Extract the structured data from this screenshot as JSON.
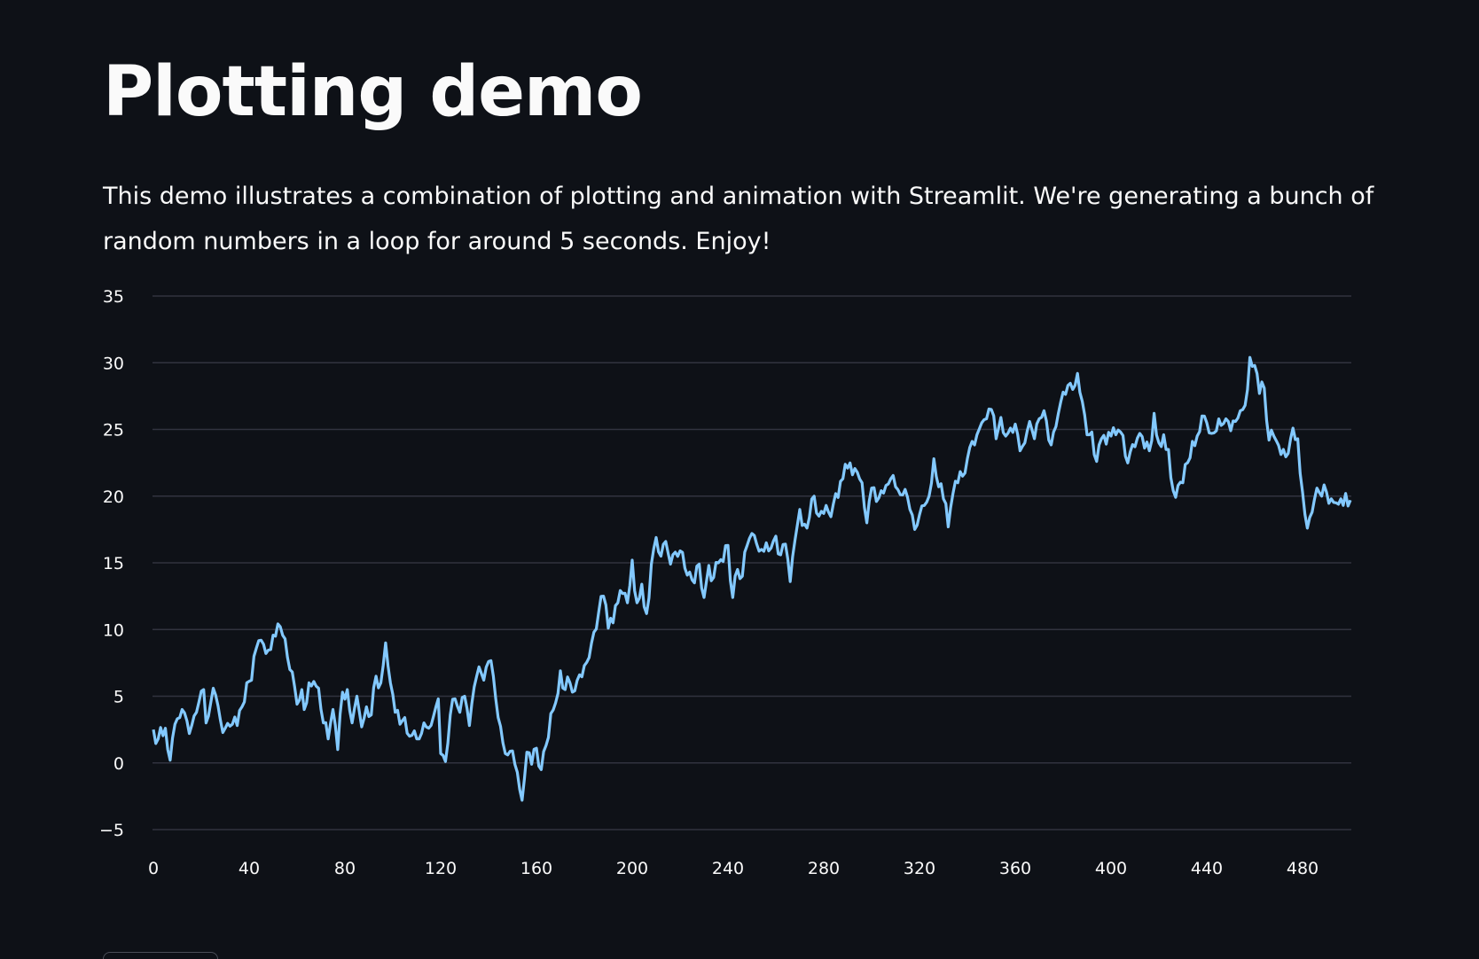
{
  "page": {
    "title": "Plotting demo",
    "description": "This demo illustrates a combination of plotting and animation with Streamlit. We're generating a bunch of random numbers in a loop for around 5 seconds. Enjoy!"
  },
  "colors": {
    "background": "#0e1117",
    "text": "#fafafa",
    "line": "#83c9ff",
    "grid": "#31333f"
  },
  "chart_data": {
    "type": "line",
    "title": "",
    "xlabel": "",
    "ylabel": "",
    "xlim": [
      0,
      500
    ],
    "ylim": [
      -5,
      35
    ],
    "x_ticks": [
      0,
      40,
      80,
      120,
      160,
      200,
      240,
      280,
      320,
      360,
      400,
      440,
      480
    ],
    "y_ticks": [
      -5,
      0,
      5,
      10,
      15,
      20,
      25,
      30,
      35
    ],
    "grid": "horizontal",
    "keyframes": [
      [
        0,
        2.5
      ],
      [
        2,
        1.8
      ],
      [
        5,
        2.6
      ],
      [
        7,
        0.2
      ],
      [
        9,
        2.9
      ],
      [
        12,
        4.0
      ],
      [
        15,
        2.2
      ],
      [
        18,
        3.8
      ],
      [
        21,
        5.5
      ],
      [
        22,
        3.0
      ],
      [
        25,
        5.6
      ],
      [
        28,
        3.2
      ],
      [
        30,
        2.6
      ],
      [
        33,
        2.9
      ],
      [
        35,
        2.8
      ],
      [
        37,
        4.2
      ],
      [
        39,
        6.0
      ],
      [
        41,
        6.2
      ],
      [
        43,
        8.6
      ],
      [
        45,
        9.2
      ],
      [
        47,
        8.2
      ],
      [
        49,
        8.5
      ],
      [
        51,
        9.5
      ],
      [
        53,
        10.2
      ],
      [
        55,
        9.3
      ],
      [
        57,
        7.0
      ],
      [
        59,
        5.7
      ],
      [
        60,
        4.4
      ],
      [
        62,
        5.5
      ],
      [
        63,
        4.0
      ],
      [
        65,
        6.0
      ],
      [
        67,
        6.1
      ],
      [
        69,
        5.6
      ],
      [
        71,
        3.0
      ],
      [
        73,
        1.8
      ],
      [
        75,
        4.0
      ],
      [
        77,
        1.0
      ],
      [
        79,
        5.3
      ],
      [
        81,
        5.5
      ],
      [
        83,
        3.0
      ],
      [
        85,
        5.0
      ],
      [
        87,
        2.7
      ],
      [
        89,
        4.2
      ],
      [
        91,
        3.6
      ],
      [
        93,
        6.5
      ],
      [
        95,
        6.0
      ],
      [
        97,
        9.0
      ],
      [
        99,
        6.0
      ],
      [
        101,
        3.8
      ],
      [
        103,
        2.9
      ],
      [
        105,
        3.4
      ],
      [
        107,
        2.0
      ],
      [
        109,
        2.4
      ],
      [
        111,
        1.8
      ],
      [
        113,
        3.0
      ],
      [
        115,
        2.6
      ],
      [
        117,
        3.5
      ],
      [
        119,
        4.8
      ],
      [
        120,
        0.7
      ],
      [
        122,
        0.1
      ],
      [
        124,
        3.6
      ],
      [
        126,
        4.8
      ],
      [
        128,
        3.8
      ],
      [
        130,
        5.0
      ],
      [
        132,
        2.8
      ],
      [
        134,
        5.7
      ],
      [
        136,
        7.2
      ],
      [
        138,
        6.2
      ],
      [
        140,
        7.6
      ],
      [
        142,
        6.5
      ],
      [
        144,
        3.4
      ],
      [
        146,
        1.5
      ],
      [
        148,
        0.6
      ],
      [
        150,
        0.9
      ],
      [
        152,
        -0.7
      ],
      [
        154,
        -2.8
      ],
      [
        156,
        0.8
      ],
      [
        158,
        -0.1
      ],
      [
        160,
        1.1
      ],
      [
        162,
        -0.5
      ],
      [
        164,
        1.3
      ],
      [
        166,
        3.7
      ],
      [
        168,
        4.5
      ],
      [
        170,
        6.9
      ],
      [
        172,
        5.5
      ],
      [
        174,
        6.0
      ],
      [
        176,
        5.4
      ],
      [
        178,
        6.6
      ],
      [
        180,
        7.3
      ],
      [
        182,
        7.9
      ],
      [
        184,
        9.8
      ],
      [
        186,
        11.3
      ],
      [
        188,
        12.5
      ],
      [
        190,
        10.1
      ],
      [
        192,
        10.5
      ],
      [
        194,
        12.0
      ],
      [
        196,
        12.7
      ],
      [
        198,
        12.0
      ],
      [
        200,
        15.2
      ],
      [
        202,
        12.0
      ],
      [
        204,
        13.4
      ],
      [
        206,
        11.2
      ],
      [
        208,
        14.9
      ],
      [
        210,
        16.9
      ],
      [
        212,
        15.5
      ],
      [
        214,
        16.6
      ],
      [
        216,
        14.9
      ],
      [
        218,
        15.8
      ],
      [
        220,
        15.9
      ],
      [
        222,
        14.6
      ],
      [
        224,
        14.3
      ],
      [
        226,
        13.5
      ],
      [
        228,
        14.9
      ],
      [
        230,
        12.4
      ],
      [
        232,
        14.8
      ],
      [
        234,
        13.9
      ],
      [
        236,
        15.0
      ],
      [
        238,
        15.1
      ],
      [
        240,
        16.3
      ],
      [
        242,
        12.4
      ],
      [
        244,
        14.5
      ],
      [
        246,
        14.0
      ],
      [
        248,
        16.3
      ],
      [
        250,
        17.2
      ],
      [
        252,
        16.4
      ],
      [
        254,
        16.0
      ],
      [
        256,
        16.5
      ],
      [
        258,
        16.1
      ],
      [
        260,
        17.0
      ],
      [
        262,
        15.6
      ],
      [
        264,
        16.4
      ],
      [
        266,
        13.6
      ],
      [
        268,
        16.7
      ],
      [
        270,
        19.0
      ],
      [
        272,
        17.9
      ],
      [
        274,
        18.4
      ],
      [
        276,
        20.0
      ],
      [
        278,
        18.5
      ],
      [
        280,
        18.7
      ],
      [
        282,
        18.8
      ],
      [
        284,
        19.4
      ],
      [
        286,
        19.9
      ],
      [
        288,
        21.3
      ],
      [
        290,
        22.1
      ],
      [
        292,
        21.6
      ],
      [
        294,
        21.8
      ],
      [
        296,
        21.0
      ],
      [
        298,
        18.0
      ],
      [
        300,
        20.6
      ],
      [
        302,
        19.6
      ],
      [
        304,
        20.4
      ],
      [
        306,
        20.8
      ],
      [
        308,
        21.3
      ],
      [
        310,
        20.7
      ],
      [
        312,
        20.1
      ],
      [
        314,
        20.5
      ],
      [
        316,
        19.0
      ],
      [
        318,
        17.5
      ],
      [
        320,
        18.6
      ],
      [
        322,
        19.3
      ],
      [
        324,
        20.0
      ],
      [
        326,
        22.8
      ],
      [
        328,
        20.7
      ],
      [
        330,
        19.8
      ],
      [
        332,
        17.7
      ],
      [
        334,
        20.2
      ],
      [
        336,
        21.0
      ],
      [
        338,
        21.5
      ],
      [
        340,
        22.8
      ],
      [
        342,
        24.1
      ],
      [
        344,
        24.6
      ],
      [
        346,
        25.5
      ],
      [
        348,
        25.8
      ],
      [
        350,
        26.5
      ],
      [
        352,
        24.3
      ],
      [
        354,
        25.9
      ],
      [
        356,
        24.5
      ],
      [
        358,
        25.1
      ],
      [
        360,
        25.4
      ],
      [
        362,
        23.4
      ],
      [
        364,
        24.0
      ],
      [
        366,
        25.6
      ],
      [
        368,
        24.3
      ],
      [
        370,
        25.8
      ],
      [
        372,
        26.4
      ],
      [
        374,
        24.2
      ],
      [
        376,
        24.8
      ],
      [
        378,
        26.2
      ],
      [
        380,
        27.8
      ],
      [
        382,
        28.3
      ],
      [
        384,
        28.0
      ],
      [
        386,
        29.2
      ],
      [
        388,
        27.1
      ],
      [
        390,
        24.6
      ],
      [
        392,
        24.8
      ],
      [
        394,
        22.6
      ],
      [
        396,
        24.3
      ],
      [
        398,
        23.9
      ],
      [
        400,
        24.5
      ],
      [
        402,
        24.6
      ],
      [
        404,
        24.8
      ],
      [
        406,
        23.0
      ],
      [
        408,
        23.3
      ],
      [
        410,
        23.7
      ],
      [
        412,
        24.7
      ],
      [
        414,
        23.6
      ],
      [
        416,
        23.4
      ],
      [
        418,
        26.2
      ],
      [
        420,
        24.0
      ],
      [
        422,
        24.6
      ],
      [
        424,
        23.5
      ],
      [
        426,
        20.4
      ],
      [
        428,
        20.8
      ],
      [
        430,
        21.0
      ],
      [
        432,
        22.5
      ],
      [
        434,
        24.1
      ],
      [
        436,
        24.5
      ],
      [
        438,
        26.0
      ],
      [
        440,
        25.5
      ],
      [
        442,
        24.7
      ],
      [
        444,
        24.9
      ],
      [
        446,
        25.3
      ],
      [
        448,
        25.8
      ],
      [
        450,
        24.9
      ],
      [
        452,
        25.6
      ],
      [
        454,
        26.4
      ],
      [
        456,
        26.8
      ],
      [
        458,
        30.4
      ],
      [
        460,
        29.8
      ],
      [
        462,
        27.7
      ],
      [
        464,
        28.1
      ],
      [
        466,
        24.2
      ],
      [
        468,
        24.5
      ],
      [
        470,
        23.8
      ],
      [
        472,
        23.5
      ],
      [
        474,
        23.2
      ],
      [
        476,
        25.1
      ],
      [
        478,
        24.3
      ],
      [
        480,
        20.3
      ],
      [
        482,
        17.6
      ],
      [
        484,
        18.8
      ],
      [
        486,
        20.6
      ],
      [
        488,
        20.0
      ],
      [
        490,
        20.3
      ],
      [
        492,
        19.8
      ],
      [
        494,
        19.5
      ],
      [
        496,
        19.8
      ],
      [
        498,
        20.2
      ],
      [
        500,
        19.7
      ]
    ]
  }
}
